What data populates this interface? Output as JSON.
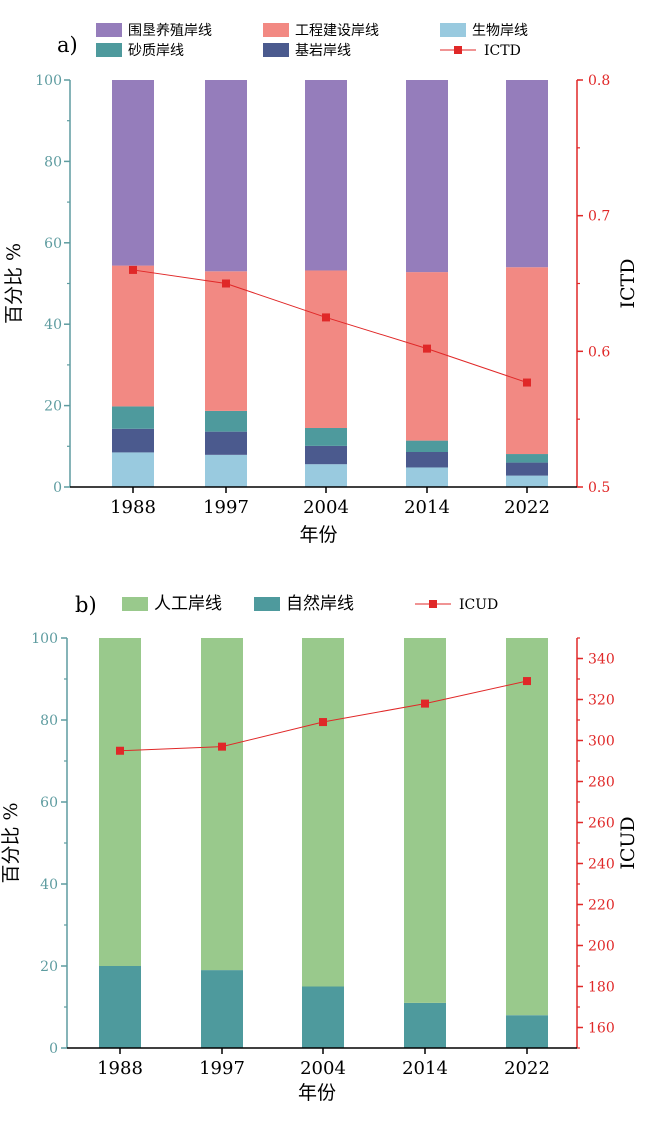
{
  "chart_data": [
    {
      "type": "bar",
      "stacked": true,
      "panel_label": "a)",
      "categories": [
        "1988",
        "1997",
        "2004",
        "2014",
        "2022"
      ],
      "series": [
        {
          "name": "生物岸线",
          "color": "#99cadf",
          "values": [
            8.5,
            7.9,
            5.6,
            4.8,
            2.8
          ]
        },
        {
          "name": "基岩岸线",
          "color": "#4b5a8e",
          "values": [
            5.8,
            5.7,
            4.5,
            3.8,
            3.2
          ]
        },
        {
          "name": "砂质岸线",
          "color": "#4e9a9d",
          "values": [
            5.5,
            5.1,
            4.4,
            2.8,
            2.1
          ]
        },
        {
          "name": "工程建设岸线",
          "color": "#f28983",
          "values": [
            34.6,
            34.3,
            38.7,
            41.4,
            45.9
          ]
        },
        {
          "name": "围垦养殖岸线",
          "color": "#957dbb",
          "values": [
            45.6,
            47.0,
            46.8,
            47.2,
            46.0
          ]
        }
      ],
      "line": {
        "name": "ICTD",
        "color": "#e02828",
        "values": [
          0.66,
          0.65,
          0.625,
          0.602,
          0.577
        ]
      },
      "legend_order": [
        "围垦养殖岸线",
        "工程建设岸线",
        "生物岸线",
        "砂质岸线",
        "基岩岸线",
        "ICTD"
      ],
      "ylabel": "百分比 %",
      "y2label": "ICTD",
      "xlabel": "年份",
      "ylim": [
        0,
        100
      ],
      "y2lim": [
        0.5,
        0.8
      ],
      "yticks": [
        "0",
        "20",
        "40",
        "60",
        "80",
        "100"
      ],
      "y2ticks": [
        "0.5",
        "0.6",
        "0.7",
        "0.8"
      ],
      "legend_position": "top",
      "grid": false
    },
    {
      "type": "bar",
      "stacked": true,
      "panel_label": "b)",
      "categories": [
        "1988",
        "1997",
        "2004",
        "2014",
        "2022"
      ],
      "series": [
        {
          "name": "自然岸线",
          "color": "#4e9a9d",
          "values": [
            20,
            19,
            15,
            11,
            8
          ]
        },
        {
          "name": "人工岸线",
          "color": "#99c98c",
          "values": [
            80,
            81,
            85,
            89,
            92
          ]
        }
      ],
      "line": {
        "name": "ICUD",
        "color": "#e02828",
        "values": [
          295,
          297,
          309,
          318,
          329
        ]
      },
      "legend_order": [
        "人工岸线",
        "自然岸线",
        "ICUD"
      ],
      "ylabel": "百分比 %",
      "y2label": "ICUD",
      "xlabel": "年份",
      "ylim": [
        0,
        100
      ],
      "y2lim": [
        150,
        350
      ],
      "yticks": [
        "0",
        "20",
        "40",
        "60",
        "80",
        "100"
      ],
      "y2ticks": [
        "160",
        "180",
        "200",
        "220",
        "240",
        "260",
        "280",
        "300",
        "320",
        "340"
      ],
      "legend_position": "top",
      "grid": false
    }
  ]
}
